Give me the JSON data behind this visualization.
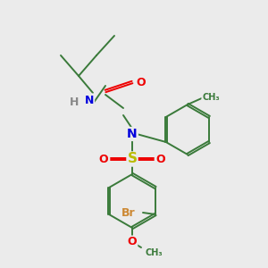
{
  "background_color": "#ebebeb",
  "bond_color": "#3a7a3a",
  "atom_colors": {
    "N": "#0000dd",
    "O": "#ee0000",
    "S": "#bbbb00",
    "Br": "#cc8833",
    "H": "#888888",
    "C": "#3a7a3a"
  },
  "figsize": [
    3.0,
    3.0
  ],
  "dpi": 100
}
